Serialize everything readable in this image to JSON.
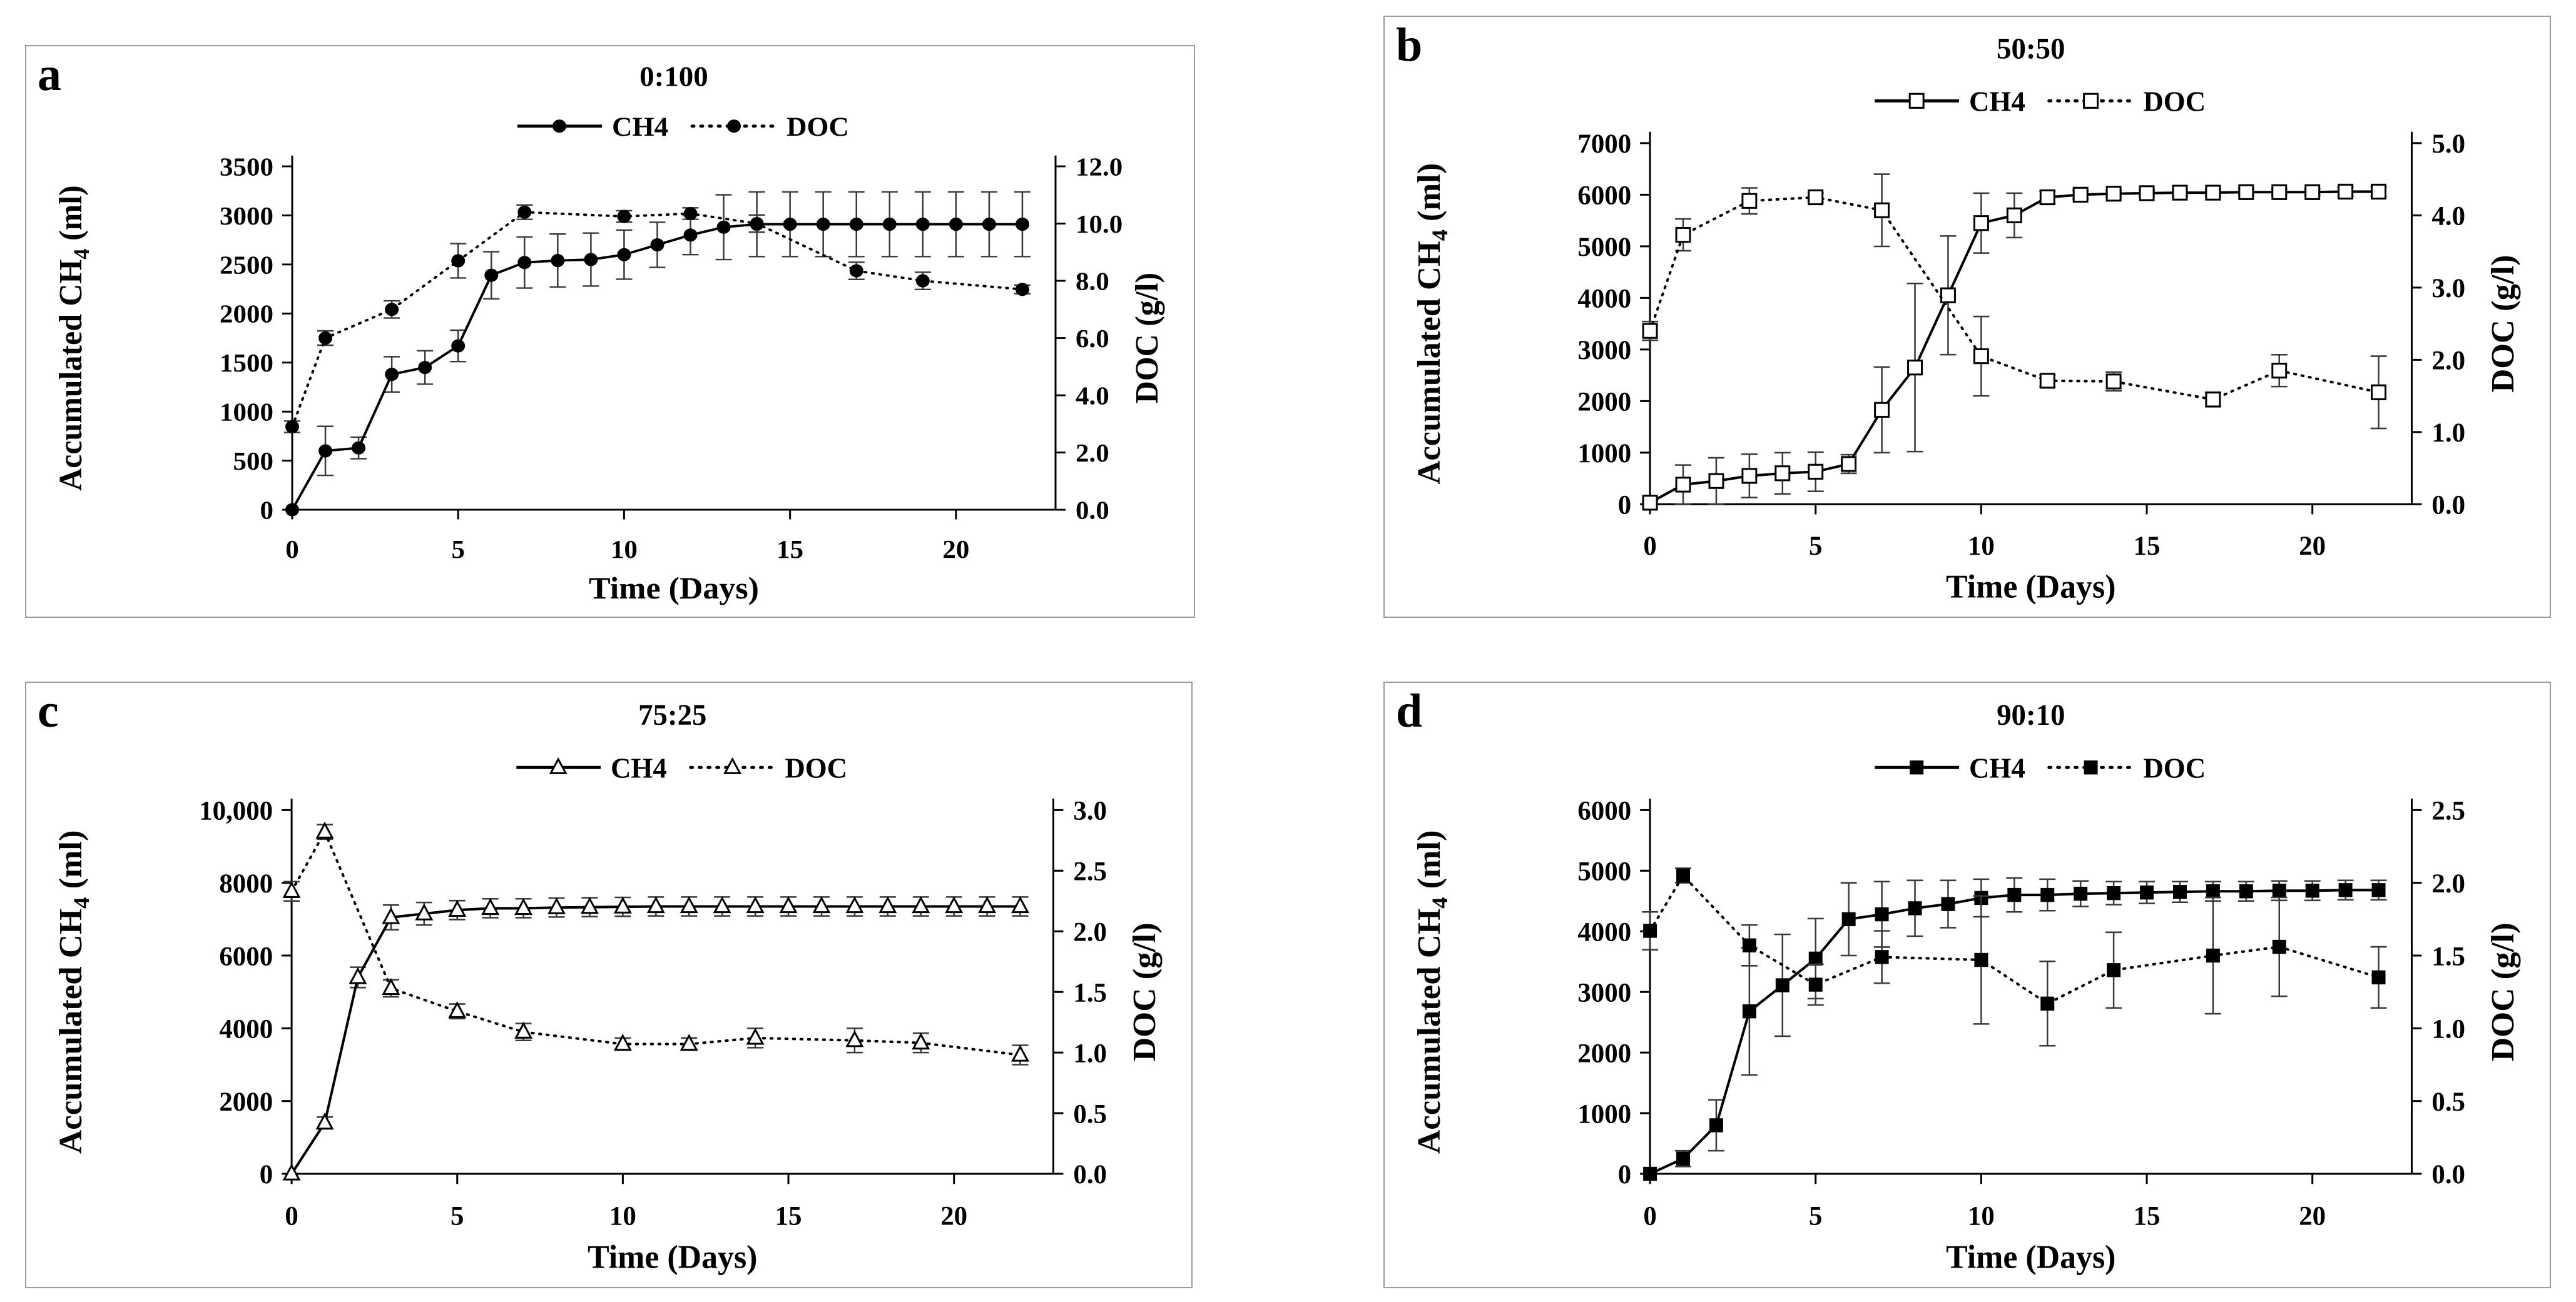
{
  "page": {
    "background": "#ffffff",
    "panel_border_color": "#9c9c9c",
    "ink_color": "#000000",
    "errorbar_color": "#3a3a3a"
  },
  "chart_data": [
    {
      "panel_letter": "a",
      "title": "0:100",
      "type": "line",
      "xlabel": "Time (Days)",
      "ylabel_left": "Accumulated CH4 (ml)",
      "ylabel_right": "DOC (g/l)",
      "xlim": [
        0,
        23
      ],
      "x_ticks": [
        0,
        5,
        10,
        15,
        20
      ],
      "grid": false,
      "legend_position": "top",
      "left_axis": {
        "max": 3500,
        "tick_labels": [
          "0",
          "500",
          "1000",
          "1500",
          "2000",
          "2500",
          "3000",
          "3500"
        ]
      },
      "right_axis": {
        "max": 12,
        "tick_labels": [
          "0.0",
          "2.0",
          "4.0",
          "6.0",
          "8.0",
          "10.0",
          "12.0"
        ]
      },
      "series": [
        {
          "name": "CH4",
          "axis": "left",
          "line": "solid",
          "marker": "circle-filled",
          "x": [
            0,
            1,
            2,
            3,
            4,
            5,
            6,
            7,
            8,
            9,
            10,
            11,
            12,
            13,
            14,
            15,
            16,
            17,
            18,
            19,
            20,
            21,
            22
          ],
          "y": [
            0,
            600,
            630,
            1380,
            1450,
            1670,
            2390,
            2520,
            2540,
            2550,
            2600,
            2700,
            2800,
            2880,
            2910,
            2910,
            2910,
            2910,
            2910,
            2910,
            2910,
            2910,
            2910
          ],
          "err": [
            0,
            250,
            110,
            180,
            170,
            160,
            240,
            260,
            270,
            270,
            250,
            230,
            200,
            330,
            330,
            330,
            330,
            330,
            330,
            330,
            330,
            330,
            330
          ]
        },
        {
          "name": "DOC",
          "axis": "right",
          "line": "dotted",
          "marker": "circle-filled",
          "x": [
            0,
            1,
            3,
            5,
            7,
            10,
            12,
            14,
            17,
            19,
            22
          ],
          "y": [
            2.9,
            6.0,
            7.0,
            8.7,
            10.4,
            10.25,
            10.35,
            10.0,
            8.35,
            8.0,
            7.7
          ],
          "err": [
            0.2,
            0.25,
            0.3,
            0.6,
            0.25,
            0.2,
            0.2,
            0.3,
            0.3,
            0.3,
            0.15
          ]
        }
      ]
    },
    {
      "panel_letter": "b",
      "title": "50:50",
      "type": "line",
      "xlabel": "Time (Days)",
      "ylabel_left": "Accumulated CH4 (ml)",
      "ylabel_right": "DOC (g/l)",
      "xlim": [
        0,
        23
      ],
      "x_ticks": [
        0,
        5,
        10,
        15,
        20
      ],
      "grid": false,
      "legend_position": "top",
      "left_axis": {
        "max": 7000,
        "tick_labels": [
          "0",
          "1000",
          "2000",
          "3000",
          "4000",
          "5000",
          "6000",
          "7000"
        ]
      },
      "right_axis": {
        "max": 5,
        "tick_labels": [
          "0.0",
          "1.0",
          "2.0",
          "3.0",
          "4.0",
          "5.0"
        ]
      },
      "series": [
        {
          "name": "CH4",
          "axis": "left",
          "line": "solid",
          "marker": "square-open",
          "x": [
            0,
            1,
            2,
            3,
            4,
            5,
            6,
            7,
            8,
            9,
            10,
            11,
            12,
            13,
            14,
            15,
            16,
            17,
            18,
            19,
            20,
            21,
            22
          ],
          "y": [
            30,
            380,
            450,
            550,
            600,
            630,
            780,
            1830,
            2650,
            4050,
            5450,
            5600,
            5950,
            6000,
            6020,
            6030,
            6040,
            6040,
            6050,
            6050,
            6050,
            6060,
            6060
          ],
          "err": [
            40,
            380,
            450,
            420,
            400,
            380,
            180,
            830,
            1630,
            1150,
            580,
            430,
            120,
            80,
            60,
            60,
            60,
            60,
            60,
            60,
            60,
            90,
            90
          ]
        },
        {
          "name": "DOC",
          "axis": "right",
          "line": "dotted",
          "marker": "square-open",
          "x": [
            0,
            1,
            3,
            5,
            7,
            10,
            12,
            14,
            17,
            19,
            22
          ],
          "y": [
            2.4,
            3.73,
            4.2,
            4.25,
            4.07,
            2.05,
            1.71,
            1.7,
            1.45,
            1.85,
            1.55
          ],
          "err": [
            0.13,
            0.22,
            0.18,
            0.06,
            0.5,
            0.55,
            0.08,
            0.13,
            0.1,
            0.22,
            0.5
          ]
        }
      ]
    },
    {
      "panel_letter": "c",
      "title": "75:25",
      "type": "line",
      "xlabel": "Time (Days)",
      "ylabel_left": "Accumulated CH4 (ml)",
      "ylabel_right": "DOC (g/l)",
      "xlim": [
        0,
        23
      ],
      "x_ticks": [
        0,
        5,
        10,
        15,
        20
      ],
      "grid": false,
      "legend_position": "top",
      "left_axis": {
        "max": 10000,
        "tick_labels": [
          "0",
          "2000",
          "4000",
          "6000",
          "8000",
          "10,000"
        ]
      },
      "right_axis": {
        "max": 3,
        "tick_labels": [
          "0.0",
          "0.5",
          "1.0",
          "1.5",
          "2.0",
          "2.5",
          "3.0"
        ]
      },
      "series": [
        {
          "name": "CH4",
          "axis": "left",
          "line": "solid",
          "marker": "triangle-open",
          "x": [
            0,
            1,
            2,
            3,
            4,
            5,
            6,
            7,
            8,
            9,
            10,
            11,
            12,
            13,
            14,
            15,
            16,
            17,
            18,
            19,
            20,
            21,
            22
          ],
          "y": [
            0,
            1400,
            5400,
            7050,
            7150,
            7250,
            7300,
            7300,
            7320,
            7330,
            7340,
            7350,
            7350,
            7350,
            7350,
            7350,
            7350,
            7350,
            7350,
            7350,
            7350,
            7350,
            7350
          ],
          "err": [
            0,
            160,
            280,
            340,
            310,
            260,
            260,
            260,
            260,
            260,
            260,
            260,
            260,
            260,
            260,
            260,
            260,
            260,
            260,
            260,
            260,
            260,
            260
          ]
        },
        {
          "name": "DOC",
          "axis": "right",
          "line": "dotted",
          "marker": "triangle-open",
          "x": [
            0,
            1,
            3,
            5,
            7,
            10,
            12,
            14,
            17,
            19,
            22
          ],
          "y": [
            2.33,
            2.82,
            1.53,
            1.34,
            1.17,
            1.07,
            1.07,
            1.12,
            1.1,
            1.08,
            0.98
          ],
          "err": [
            0.08,
            0.06,
            0.07,
            0.06,
            0.07,
            0.05,
            0.05,
            0.08,
            0.1,
            0.08,
            0.08
          ]
        }
      ]
    },
    {
      "panel_letter": "d",
      "title": "90:10",
      "type": "line",
      "xlabel": "Time (Days)",
      "ylabel_left": "Accumulated CH4 (ml)",
      "ylabel_right": "DOC (g/l)",
      "xlim": [
        0,
        23
      ],
      "x_ticks": [
        0,
        5,
        10,
        15,
        20
      ],
      "grid": false,
      "legend_position": "top",
      "left_axis": {
        "max": 6000,
        "tick_labels": [
          "0",
          "1000",
          "2000",
          "3000",
          "4000",
          "5000",
          "6000"
        ]
      },
      "right_axis": {
        "max": 2.5,
        "tick_labels": [
          "0.0",
          "0.5",
          "1.0",
          "1.5",
          "2.0",
          "2.5"
        ]
      },
      "series": [
        {
          "name": "CH4",
          "axis": "left",
          "line": "solid",
          "marker": "square-filled",
          "x": [
            0,
            1,
            2,
            3,
            4,
            5,
            6,
            7,
            8,
            9,
            10,
            11,
            12,
            13,
            14,
            15,
            16,
            17,
            18,
            19,
            20,
            21,
            22
          ],
          "y": [
            0,
            250,
            800,
            2680,
            3110,
            3550,
            4200,
            4280,
            4380,
            4450,
            4550,
            4600,
            4600,
            4620,
            4630,
            4640,
            4650,
            4660,
            4660,
            4670,
            4670,
            4680,
            4680
          ],
          "err": [
            0,
            130,
            420,
            1050,
            840,
            660,
            600,
            540,
            460,
            390,
            310,
            280,
            260,
            210,
            190,
            180,
            170,
            160,
            160,
            160,
            160,
            160,
            160
          ]
        },
        {
          "name": "DOC",
          "axis": "right",
          "line": "dotted",
          "marker": "square-filled",
          "x": [
            0,
            1,
            3,
            5,
            7,
            10,
            12,
            14,
            17,
            19,
            22
          ],
          "y": [
            1.67,
            2.05,
            1.57,
            1.3,
            1.49,
            1.47,
            1.17,
            1.4,
            1.5,
            1.56,
            1.35
          ],
          "err": [
            0.13,
            0.05,
            0.14,
            0.14,
            0.18,
            0.44,
            0.29,
            0.26,
            0.4,
            0.34,
            0.21
          ]
        }
      ]
    }
  ]
}
